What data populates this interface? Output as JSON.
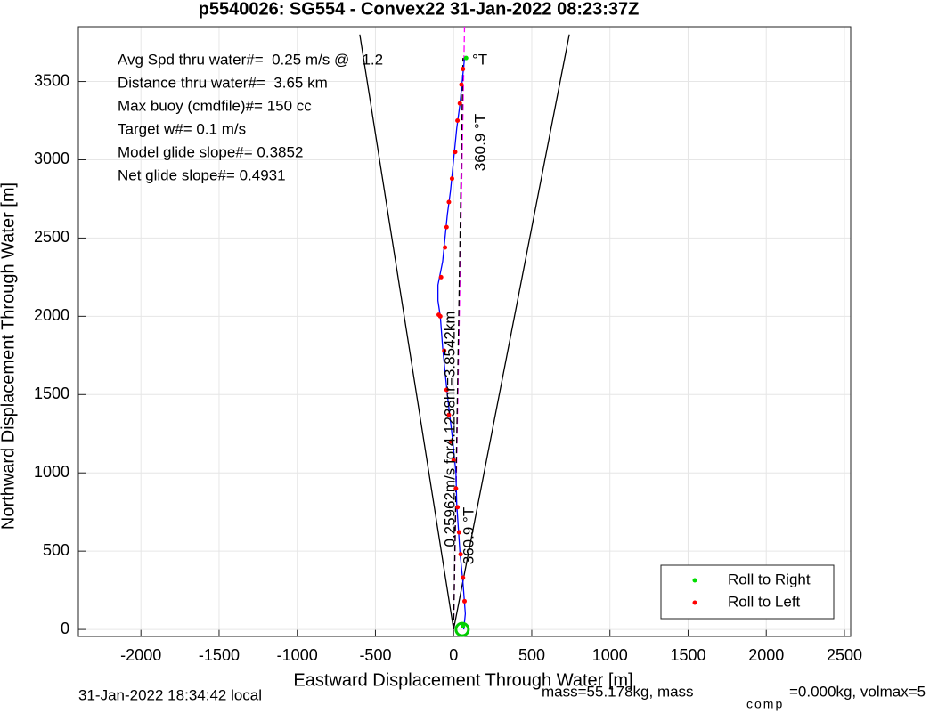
{
  "chart_data": {
    "type": "line",
    "title": "p5540026: SG554 - Convex22 31-Jan-2022 08:23:37Z",
    "xlabel": "Eastward Displacement Through Water [m]",
    "ylabel": "Northward Displacement Through Water [m]",
    "xlim": [
      -2400,
      2540
    ],
    "ylim": [
      -45,
      3850
    ],
    "xticks": [
      -2000,
      -1500,
      -1000,
      -500,
      0,
      500,
      1000,
      1500,
      2000,
      2500
    ],
    "yticks": [
      0,
      500,
      1000,
      1500,
      2000,
      2500,
      3000,
      3500
    ],
    "grid": true,
    "legend": "southeast",
    "series": [
      {
        "style": "solid",
        "color": "#000000",
        "x": [
          -600,
          0,
          740
        ],
        "values": [
          3800,
          0,
          3800
        ]
      },
      {
        "style": "dashed",
        "color": "#ff00ff",
        "x": [
          0,
          70
        ],
        "values": [
          0,
          3850
        ]
      },
      {
        "style": "dashed",
        "color": "#000000",
        "x": [
          0,
          60
        ],
        "values": [
          0,
          3650
        ]
      },
      {
        "style": "solid",
        "color": "#0000ff",
        "x": [
          65,
          75,
          60,
          40,
          20,
          15,
          -5,
          -40,
          -70,
          -85,
          -100,
          -100,
          -70,
          -55,
          -40,
          -20,
          0,
          20,
          40,
          55,
          70
        ],
        "values": [
          0,
          100,
          300,
          500,
          800,
          1000,
          1200,
          1500,
          1800,
          2000,
          2100,
          2200,
          2350,
          2500,
          2650,
          2800,
          3000,
          3200,
          3350,
          3500,
          3650
        ]
      },
      {
        "style": "dots",
        "name": "Roll to Right",
        "color": "#00dd00",
        "x": [
          80,
          60
        ],
        "values": [
          3650,
          20
        ]
      },
      {
        "style": "dots",
        "name": "Roll to Left",
        "color": "#ff0000",
        "x": [
          70,
          60,
          45,
          35,
          25,
          15,
          0,
          -15,
          -30,
          -45,
          -60,
          -85,
          -95,
          -80,
          -55,
          -45,
          -30,
          -10,
          10,
          25,
          40,
          50,
          60
        ],
        "values": [
          180,
          330,
          480,
          620,
          780,
          900,
          1080,
          1200,
          1370,
          1530,
          1780,
          2000,
          2010,
          2250,
          2440,
          2570,
          2730,
          2880,
          3050,
          3250,
          3360,
          3480,
          3580
        ]
      },
      {
        "style": "circle",
        "color": "#00cc00",
        "x": [
          55
        ],
        "values": [
          0
        ]
      }
    ],
    "annotations": [
      "Avg Spd thru water#=  0.25 m/s @   1.2",
      "Distance thru water#=  3.65 km",
      "Max buoy (cmdfile)#= 150 cc",
      "Target w#= 0.1 m/s",
      "Model glide slope#= 0.3852",
      "Net glide slope#= 0.4931",
      "°T",
      "360.9 °T",
      "0.25962m/s for4.1238hr=3.8542km",
      "360.9 °T"
    ]
  },
  "footer": {
    "time": "31-Jan-2022 18:34:42 local",
    "mass": "mass=55.178kg, mass",
    "subscript": "comp",
    "rest": "=0.000kg, volmax=5"
  }
}
